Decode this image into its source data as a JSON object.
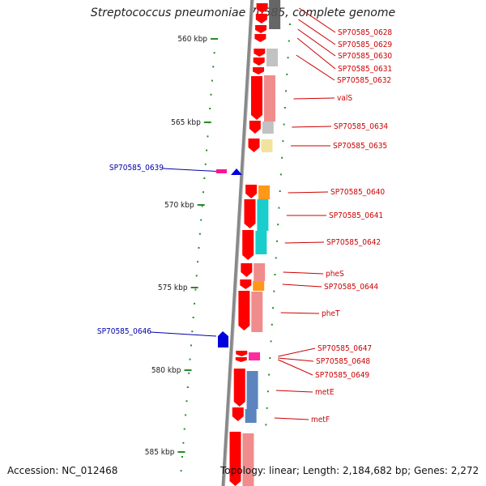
{
  "title": "Streptococcus pneumoniae 70585, complete genome",
  "footer": {
    "accession": "Accession: NC_012468",
    "topology": "Topology: linear; Length: 2,184,682 bp; Genes: 2,272"
  },
  "colors": {
    "forward_gene": "#ff0000",
    "reverse_gene": "#0000dd",
    "label_forward": "#cc0000",
    "label_reverse": "#0000aa",
    "backbone": "#888888",
    "tick": "#2a8a2a"
  },
  "ruler": {
    "unit": "kbp",
    "ticks": [
      "560 kbp",
      "565 kbp",
      "570 kbp",
      "575 kbp",
      "580 kbp",
      "585 kbp"
    ]
  },
  "genes_right": [
    {
      "label": "SP70585_0628",
      "lane_color": "#555555",
      "strand": "forward"
    },
    {
      "label": "SP70585_0629",
      "lane_color": "#555555",
      "strand": "forward"
    },
    {
      "label": "SP70585_0630",
      "lane_color": "#bbbbbb",
      "strand": "forward"
    },
    {
      "label": "SP70585_0631",
      "lane_color": "#f07070",
      "strand": "forward"
    },
    {
      "label": "SP70585_0632",
      "lane_color": "#f07070",
      "strand": "forward"
    },
    {
      "label": "valS",
      "lane_color": "#f08080",
      "strand": "forward"
    },
    {
      "label": "SP70585_0634",
      "lane_color": "#bbbbbb",
      "strand": "forward"
    },
    {
      "label": "SP70585_0635",
      "lane_color": "#f0e090",
      "strand": "forward"
    },
    {
      "label": "SP70585_0640",
      "lane_color": "#ff8c00",
      "strand": "forward"
    },
    {
      "label": "SP70585_0641",
      "lane_color": "#00c8c8",
      "strand": "forward"
    },
    {
      "label": "SP70585_0642",
      "lane_color": "#00c8c8",
      "strand": "forward"
    },
    {
      "label": "pheS",
      "lane_color": "#f07070",
      "strand": "forward"
    },
    {
      "label": "SP70585_0644",
      "lane_color": "#ff8c00",
      "strand": "forward"
    },
    {
      "label": "pheT",
      "lane_color": "#f07070",
      "strand": "forward"
    },
    {
      "label": "SP70585_0647",
      "lane_color": "#ff1493",
      "strand": "forward"
    },
    {
      "label": "SP70585_0648",
      "lane_color": "#ff1493",
      "strand": "forward"
    },
    {
      "label": "SP70585_0649",
      "lane_color": "#ff1493",
      "strand": "forward"
    },
    {
      "label": "metE",
      "lane_color": "#4a78b8",
      "strand": "forward"
    },
    {
      "label": "metF",
      "lane_color": "#4a78b8",
      "strand": "forward"
    }
  ],
  "genes_left": [
    {
      "label": "SP70585_0639",
      "strand": "reverse"
    },
    {
      "label": "SP70585_0646",
      "strand": "reverse"
    }
  ]
}
